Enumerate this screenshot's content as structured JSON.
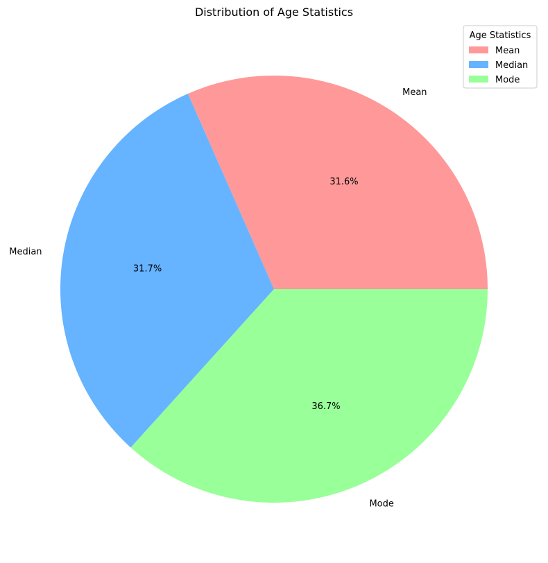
{
  "chart_data": {
    "type": "pie",
    "title": "Distribution of Age Statistics",
    "labels": [
      "Mean",
      "Median",
      "Mode"
    ],
    "values": [
      31.6,
      31.7,
      36.7
    ],
    "percent_labels": [
      "31.6%",
      "31.7%",
      "36.7%"
    ],
    "colors": [
      "#ff9999",
      "#66b3ff",
      "#99ff99"
    ],
    "start_angle_deg": 0,
    "direction": "counterclockwise",
    "legend": {
      "title": "Age Statistics",
      "placement": "top-right",
      "entries": [
        "Mean",
        "Median",
        "Mode"
      ]
    }
  }
}
